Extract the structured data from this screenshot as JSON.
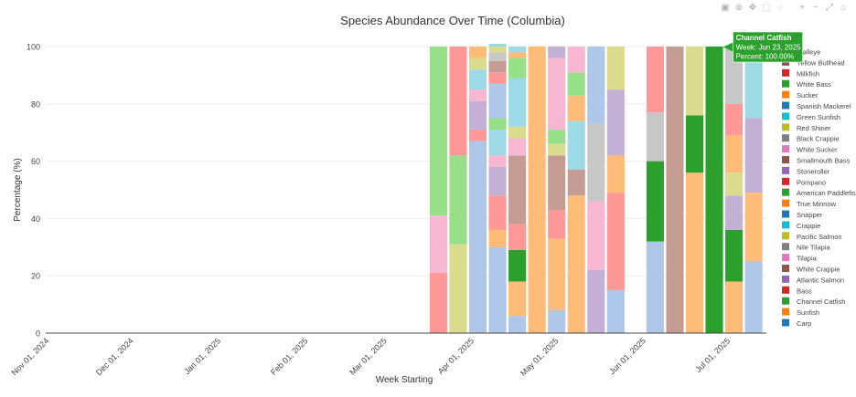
{
  "modebar": {
    "icons": [
      "camera-icon",
      "zoom-icon",
      "pan-icon",
      "box-select-icon",
      "lasso-icon",
      "zoom-in-icon",
      "zoom-out-icon",
      "autoscale-icon",
      "home-icon"
    ],
    "glyphs": [
      "▣",
      "⊕",
      "✥",
      "⬚",
      "◌",
      "+",
      "−",
      "⤢",
      "⌂"
    ]
  },
  "chart_data": {
    "type": "bar",
    "stacked": true,
    "title": "Species Abundance Over Time (Columbia)",
    "xlabel": "Week Starting",
    "ylabel": "Percentage (%)",
    "ylim": [
      0,
      100
    ],
    "yticks": [
      0,
      20,
      40,
      60,
      80,
      100
    ],
    "xlim": [
      "2024-11-01",
      "2025-07-15"
    ],
    "xtick_values": [
      "2024-11-01",
      "2024-12-01",
      "2025-01-01",
      "2025-02-01",
      "2025-03-01",
      "2025-04-01",
      "2025-05-01",
      "2025-06-01",
      "2025-07-01"
    ],
    "xtick_labels": [
      "Nov 01, 2024",
      "Dec 01, 2024",
      "Jan 01, 2025",
      "Feb 01, 2025",
      "Mar 01, 2025",
      "Apr 01, 2025",
      "May 01, 2025",
      "Jun 01, 2025",
      "Jul 01, 2025"
    ],
    "grid": true,
    "legend_position": "right",
    "series": [
      {
        "name": "Walleye",
        "color": "#9467bd"
      },
      {
        "name": "Yellow Bullhead",
        "color": "#8c564b"
      },
      {
        "name": "Milkfish",
        "color": "#d62728"
      },
      {
        "name": "White Bass",
        "color": "#2ca02c"
      },
      {
        "name": "Sucker",
        "color": "#ff7f0e"
      },
      {
        "name": "Spanish Mackerel",
        "color": "#1f77b4"
      },
      {
        "name": "Green Sunfish",
        "color": "#17becf"
      },
      {
        "name": "Red Shiner",
        "color": "#bcbd22"
      },
      {
        "name": "Black Crappie",
        "color": "#7f7f7f"
      },
      {
        "name": "White Sucker",
        "color": "#e377c2"
      },
      {
        "name": "Smallmouth Bass",
        "color": "#8c564b"
      },
      {
        "name": "Stoneroller",
        "color": "#9467bd"
      },
      {
        "name": "Pompano",
        "color": "#d62728"
      },
      {
        "name": "American Paddlefish",
        "color": "#2ca02c"
      },
      {
        "name": "True Minnow",
        "color": "#ff7f0e"
      },
      {
        "name": "Snapper",
        "color": "#1f77b4"
      },
      {
        "name": "Crappie",
        "color": "#17becf"
      },
      {
        "name": "Pacific Salmon",
        "color": "#bcbd22"
      },
      {
        "name": "Nile Tilapia",
        "color": "#7f7f7f"
      },
      {
        "name": "Tilapia",
        "color": "#e377c2"
      },
      {
        "name": "White Crappie",
        "color": "#8c564b"
      },
      {
        "name": "Atlantic Salmon",
        "color": "#9467bd"
      },
      {
        "name": "Bass",
        "color": "#d62728"
      },
      {
        "name": "Channel Catfish",
        "color": "#2ca02c"
      },
      {
        "name": "Sunfish",
        "color": "#ff7f0e"
      },
      {
        "name": "Carp",
        "color": "#1f77b4"
      }
    ],
    "weeks": [
      {
        "week": "2025-03-17",
        "segments": [
          {
            "c": "#ff9896",
            "v": 21
          },
          {
            "c": "#f7b6d2",
            "v": 20
          },
          {
            "c": "#98df8a",
            "v": 59
          }
        ]
      },
      {
        "week": "2025-03-24",
        "segments": [
          {
            "c": "#dbdb8d",
            "v": 31
          },
          {
            "c": "#98df8a",
            "v": 31
          },
          {
            "c": "#ff9896",
            "v": 38
          }
        ]
      },
      {
        "week": "2025-03-31",
        "segments": [
          {
            "c": "#aec7e8",
            "v": 67
          },
          {
            "c": "#ff9896",
            "v": 4
          },
          {
            "c": "#c5b0d5",
            "v": 10
          },
          {
            "c": "#f7b6d2",
            "v": 4
          },
          {
            "c": "#9edae5",
            "v": 7
          },
          {
            "c": "#dbdb8d",
            "v": 4
          },
          {
            "c": "#ffbb78",
            "v": 4
          }
        ]
      },
      {
        "week": "2025-04-07",
        "segments": [
          {
            "c": "#aec7e8",
            "v": 30
          },
          {
            "c": "#ffbb78",
            "v": 6
          },
          {
            "c": "#ff9896",
            "v": 12
          },
          {
            "c": "#c5b0d5",
            "v": 10
          },
          {
            "c": "#f7b6d2",
            "v": 4
          },
          {
            "c": "#9edae5",
            "v": 9
          },
          {
            "c": "#98df8a",
            "v": 4
          },
          {
            "c": "#aec7e8",
            "v": 12
          },
          {
            "c": "#ff9896",
            "v": 4
          },
          {
            "c": "#c49c94",
            "v": 4
          },
          {
            "c": "#c7c7c7",
            "v": 3
          },
          {
            "c": "#dbdb8d",
            "v": 2
          },
          {
            "c": "#9edae5",
            "v": 1
          }
        ]
      },
      {
        "week": "2025-04-14",
        "segments": [
          {
            "c": "#aec7e8",
            "v": 6
          },
          {
            "c": "#ffbb78",
            "v": 12
          },
          {
            "c": "#2ca02c",
            "v": 11
          },
          {
            "c": "#ff9896",
            "v": 9
          },
          {
            "c": "#c49c94",
            "v": 24
          },
          {
            "c": "#f7b6d2",
            "v": 6
          },
          {
            "c": "#dbdb8d",
            "v": 4
          },
          {
            "c": "#9edae5",
            "v": 17
          },
          {
            "c": "#98df8a",
            "v": 7
          },
          {
            "c": "#ffbb78",
            "v": 2
          },
          {
            "c": "#9edae5",
            "v": 2
          }
        ]
      },
      {
        "week": "2025-04-21",
        "segments": [
          {
            "c": "#ffbb78",
            "v": 100
          }
        ]
      },
      {
        "week": "2025-04-28",
        "segments": [
          {
            "c": "#aec7e8",
            "v": 8
          },
          {
            "c": "#ffbb78",
            "v": 25
          },
          {
            "c": "#ff9896",
            "v": 10
          },
          {
            "c": "#c49c94",
            "v": 19
          },
          {
            "c": "#dbdb8d",
            "v": 4
          },
          {
            "c": "#98df8a",
            "v": 5
          },
          {
            "c": "#f7b6d2",
            "v": 25
          },
          {
            "c": "#c5b0d5",
            "v": 4
          }
        ]
      },
      {
        "week": "2025-05-05",
        "segments": [
          {
            "c": "#ffbb78",
            "v": 48
          },
          {
            "c": "#c49c94",
            "v": 9
          },
          {
            "c": "#9edae5",
            "v": 17
          },
          {
            "c": "#ffbb78",
            "v": 9
          },
          {
            "c": "#98df8a",
            "v": 8
          },
          {
            "c": "#f7b6d2",
            "v": 9
          }
        ]
      },
      {
        "week": "2025-05-12",
        "segments": [
          {
            "c": "#c5b0d5",
            "v": 22
          },
          {
            "c": "#f7b6d2",
            "v": 24
          },
          {
            "c": "#c7c7c7",
            "v": 27
          },
          {
            "c": "#aec7e8",
            "v": 27
          }
        ]
      },
      {
        "week": "2025-05-19",
        "segments": [
          {
            "c": "#aec7e8",
            "v": 15
          },
          {
            "c": "#ff9896",
            "v": 34
          },
          {
            "c": "#ffbb78",
            "v": 13
          },
          {
            "c": "#c5b0d5",
            "v": 23
          },
          {
            "c": "#dbdb8d",
            "v": 15
          }
        ]
      },
      {
        "week": "2025-06-02",
        "segments": [
          {
            "c": "#aec7e8",
            "v": 32
          },
          {
            "c": "#2ca02c",
            "v": 28
          },
          {
            "c": "#c7c7c7",
            "v": 17
          },
          {
            "c": "#ff9896",
            "v": 23
          }
        ]
      },
      {
        "week": "2025-06-09",
        "segments": [
          {
            "c": "#c49c94",
            "v": 100
          }
        ]
      },
      {
        "week": "2025-06-16",
        "segments": [
          {
            "c": "#ffbb78",
            "v": 56
          },
          {
            "c": "#2ca02c",
            "v": 20
          },
          {
            "c": "#dbdb8d",
            "v": 24
          }
        ]
      },
      {
        "week": "2025-06-23",
        "segments": [
          {
            "c": "#2ca02c",
            "v": 100
          }
        ]
      },
      {
        "week": "2025-06-30",
        "segments": [
          {
            "c": "#ffbb78",
            "v": 18
          },
          {
            "c": "#2ca02c",
            "v": 18
          },
          {
            "c": "#c5b0d5",
            "v": 12
          },
          {
            "c": "#dbdb8d",
            "v": 8
          },
          {
            "c": "#ffbb78",
            "v": 13
          },
          {
            "c": "#ff9896",
            "v": 11
          },
          {
            "c": "#c7c7c7",
            "v": 20
          }
        ]
      },
      {
        "week": "2025-07-07",
        "segments": [
          {
            "c": "#aec7e8",
            "v": 25
          },
          {
            "c": "#ffbb78",
            "v": 24
          },
          {
            "c": "#c5b0d5",
            "v": 26
          },
          {
            "c": "#9edae5",
            "v": 25
          }
        ]
      }
    ],
    "hover": {
      "week": "2025-06-23",
      "title": "Channel Catfish",
      "lines": [
        "Week: Jun 23, 2025",
        "Percent: 100.00%"
      ],
      "color": "#2ca02c"
    }
  }
}
